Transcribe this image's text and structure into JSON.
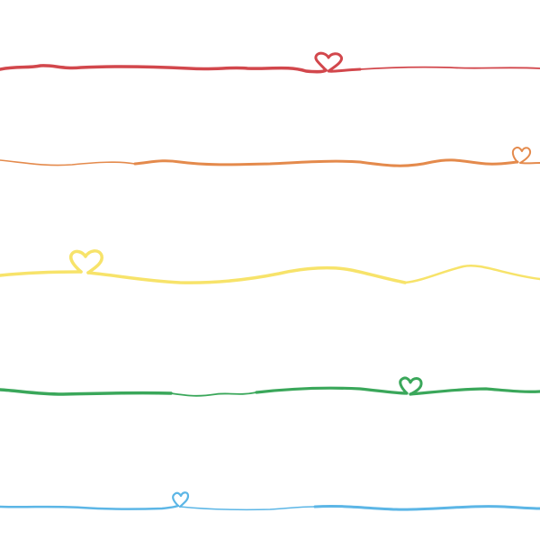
{
  "background": "#ffffff",
  "lines": [
    {
      "name": "red",
      "color": "#d2474c",
      "icon": "heart-icon"
    },
    {
      "name": "orange",
      "color": "#e48a4c",
      "icon": "heart-icon"
    },
    {
      "name": "yellow",
      "color": "#f7e36a",
      "icon": "heart-icon"
    },
    {
      "name": "green",
      "color": "#3aa75a",
      "icon": "heart-icon"
    },
    {
      "name": "blue",
      "color": "#5cb6e6",
      "icon": "heart-icon"
    }
  ]
}
